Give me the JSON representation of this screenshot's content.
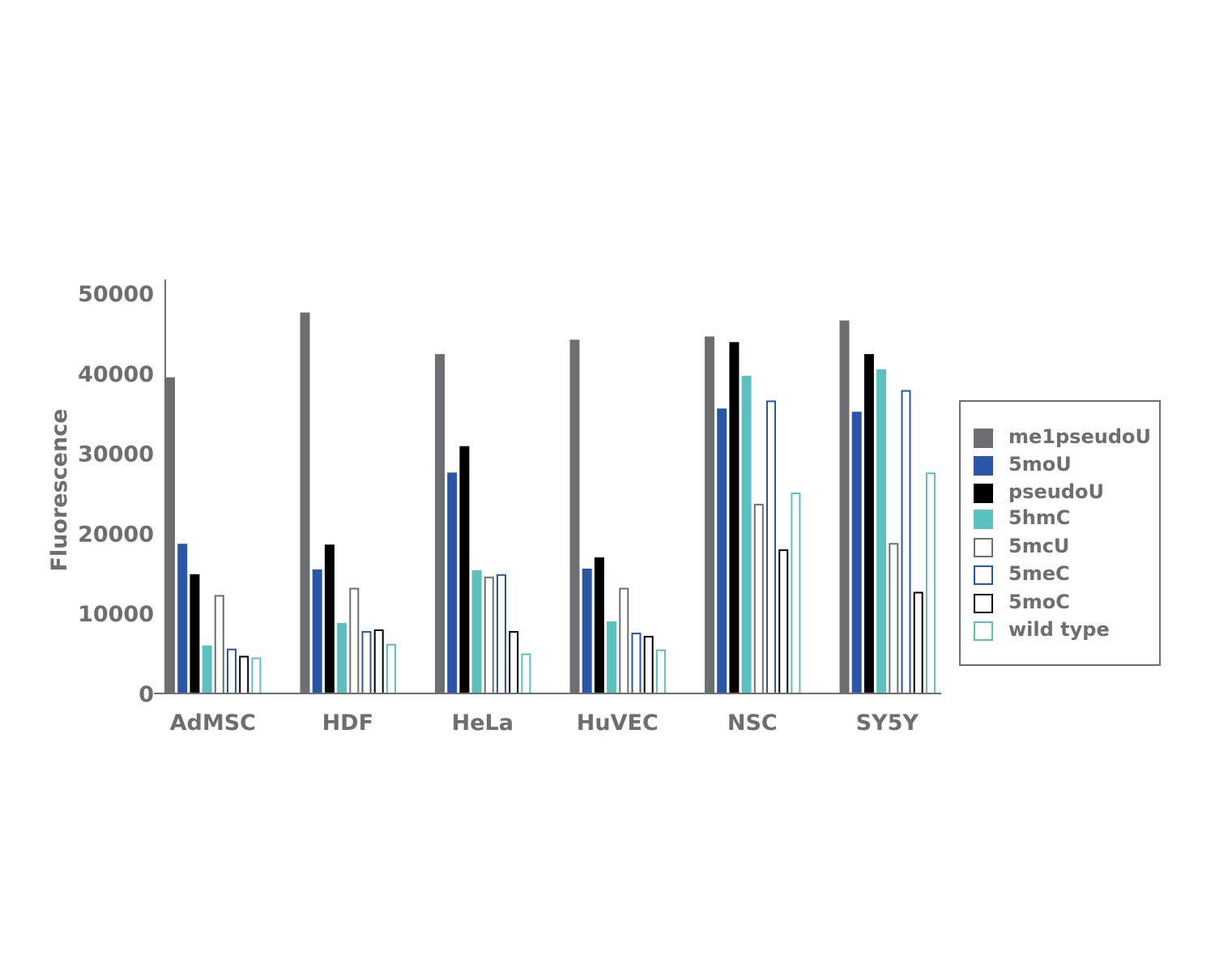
{
  "chart_data": {
    "type": "bar",
    "title": "",
    "xlabel": "",
    "ylabel": "Fluorescence",
    "ylim": [
      0,
      50000
    ],
    "yticks": [
      0,
      10000,
      20000,
      30000,
      40000,
      50000
    ],
    "ytick_labels": [
      "0",
      "10000",
      "20000",
      "30000",
      "40000",
      "50000"
    ],
    "grid": false,
    "legend_position": "right",
    "categories": [
      "AdMSC",
      "HDF",
      "HeLa",
      "HuVEC",
      "NSC",
      "SY5Y"
    ],
    "series": [
      {
        "name": "me1pseudoU",
        "style": "filled",
        "color": "#6d6e71",
        "values": [
          39500,
          47600,
          42400,
          44200,
          44600,
          46600
        ]
      },
      {
        "name": "5moU",
        "style": "filled",
        "color": "#2a56a7",
        "values": [
          18700,
          15500,
          27600,
          15600,
          35600,
          35200
        ]
      },
      {
        "name": "pseudoU",
        "style": "filled",
        "color": "#000000",
        "values": [
          14900,
          18600,
          30900,
          17000,
          43900,
          42400
        ]
      },
      {
        "name": "5hmC",
        "style": "filled",
        "color": "#5bc0be",
        "values": [
          6000,
          8800,
          15400,
          9000,
          39700,
          40500
        ]
      },
      {
        "name": "5mcU",
        "style": "outline",
        "color": "#6d6e71",
        "values": [
          12300,
          13200,
          14600,
          13200,
          23700,
          18800
        ]
      },
      {
        "name": "5meC",
        "style": "outline",
        "color": "#2a56a7",
        "values": [
          5600,
          7800,
          14900,
          7600,
          36600,
          37900
        ]
      },
      {
        "name": "5moC",
        "style": "outline",
        "color": "#000000",
        "values": [
          4700,
          8000,
          7800,
          7200,
          18000,
          12700
        ]
      },
      {
        "name": "wild type",
        "style": "outline",
        "color": "#5bc0be",
        "values": [
          4500,
          6200,
          5000,
          5500,
          25100,
          27600
        ]
      }
    ]
  },
  "colors": {
    "axis": "#6d6e71",
    "text": "#6d6e71"
  }
}
